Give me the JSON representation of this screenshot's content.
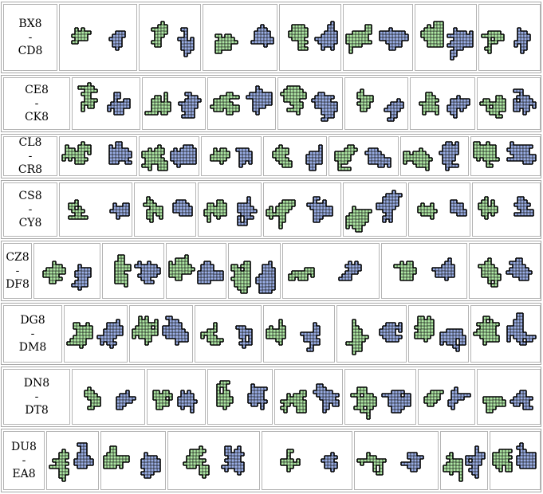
{
  "colors": {
    "green_fill": "#aee8a4",
    "blue_fill": "#9aaee6",
    "outline": "#000000",
    "grid": "#ffffff"
  },
  "rows": [
    {
      "from": "BX8",
      "dash": "-",
      "to": "CD8",
      "count": 7
    },
    {
      "from": "CE8",
      "dash": "-",
      "to": "CK8",
      "count": 7
    },
    {
      "from": "CL8",
      "dash": "-",
      "to": "CR8",
      "count": 7
    },
    {
      "from": "CS8",
      "dash": "-",
      "to": "CY8",
      "count": 7
    },
    {
      "from": "CZ8",
      "dash": "-",
      "to": "DF8",
      "count": 7
    },
    {
      "from": "DG8",
      "dash": "-",
      "to": "DM8",
      "count": 7
    },
    {
      "from": "DN8",
      "dash": "-",
      "to": "DT8",
      "count": 7
    },
    {
      "from": "DU8",
      "dash": "-",
      "to": "EA8",
      "count": 7
    }
  ]
}
